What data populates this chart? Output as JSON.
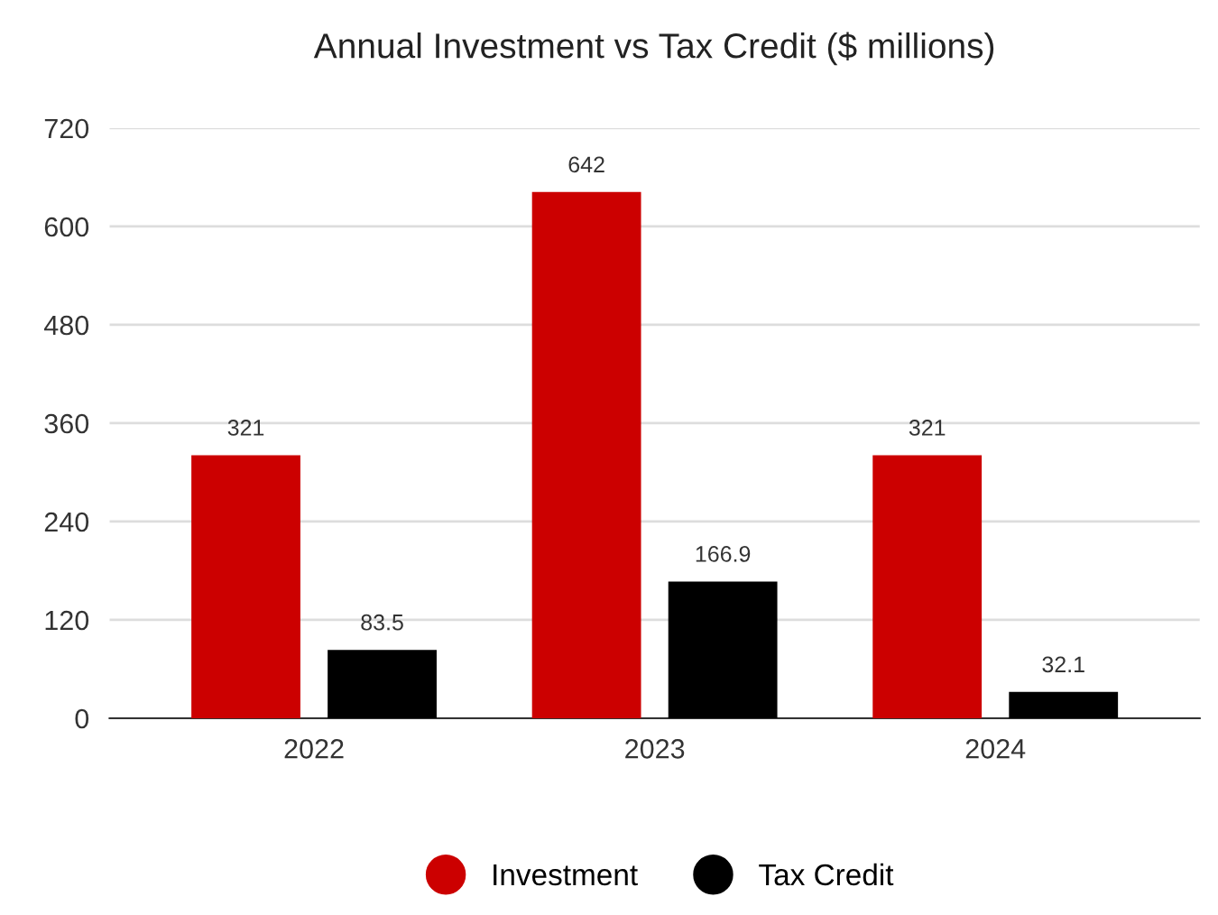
{
  "chart_data": {
    "type": "bar",
    "title": "Annual Investment vs Tax Credit ($ millions)",
    "categories": [
      "2022",
      "2023",
      "2024"
    ],
    "series": [
      {
        "name": "Investment",
        "color": "#cc0000",
        "values": [
          321,
          642,
          321
        ]
      },
      {
        "name": "Tax Credit",
        "color": "#000000",
        "values": [
          83.5,
          166.9,
          32.1
        ]
      }
    ],
    "ylim": [
      0,
      720
    ],
    "yticks": [
      0,
      120,
      240,
      360,
      480,
      600,
      720
    ],
    "grid": "y",
    "legend": "bottom",
    "data_labels": true
  }
}
